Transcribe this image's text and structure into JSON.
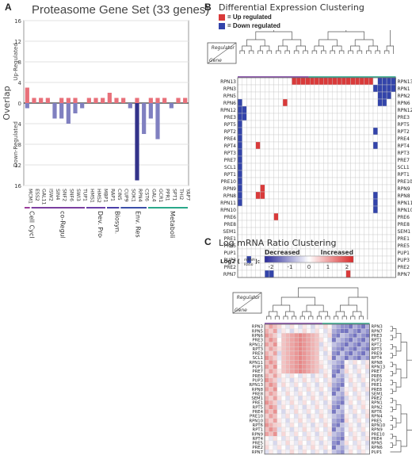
{
  "panel_a": {
    "letter": "A",
    "chart_data": {
      "type": "bar",
      "title": "Proteasome Gene Set (33 genes)",
      "ylabel": "Overlap",
      "y_upper_label": "Up-Regulated",
      "y_lower_label": "Down-Regulated",
      "ylim": [
        -16,
        16
      ],
      "yticks": [
        "16",
        "12",
        "8",
        "4",
        "0",
        "4",
        "8",
        "12",
        "16"
      ],
      "categories": [
        "MCM1",
        "ESS2",
        "GAL11",
        "ISW2",
        "SIN4",
        "SNF2",
        "SNF6",
        "SWI3",
        "TUP1",
        "HMS1",
        "HMS2",
        "MBP1",
        "RAP1",
        "CIN5",
        "CUP9",
        "SOK1",
        "RPN4",
        "CST6",
        "GAL4",
        "GCR1",
        "PPR1",
        "SPT1",
        "THI2",
        "YAP7"
      ],
      "series": [
        {
          "key": "up",
          "values": [
            3,
            1,
            1,
            1,
            0,
            1,
            1,
            1,
            0,
            1,
            1,
            1,
            2,
            1,
            1,
            0,
            1,
            0,
            1,
            1,
            1,
            0,
            1,
            1
          ]
        },
        {
          "key": "down",
          "values": [
            -1,
            0,
            0,
            0,
            -3,
            -3,
            -4,
            -2,
            -1,
            0,
            0,
            0,
            0,
            0,
            0,
            -1,
            -15,
            -6,
            -3,
            -7,
            0,
            -1,
            0,
            0
          ]
        }
      ],
      "colors": {
        "up": "#e8707a",
        "down": "#8080c0",
        "strong_down": "#33338a"
      },
      "groups": [
        {
          "label": "Cell Cycle",
          "from": 0,
          "to": 0,
          "color": "#9b3d9b"
        },
        {
          "label": "co-Regulator",
          "from": 1,
          "to": 8,
          "color": "#7b3fa0"
        },
        {
          "label": "Dev. Process",
          "from": 9,
          "to": 11,
          "color": "#6a3fa8"
        },
        {
          "label": "Biosyn.",
          "from": 12,
          "to": 13,
          "color": "#4a3fa8"
        },
        {
          "label": "Env. Response",
          "from": 14,
          "to": 17,
          "color": "#3a4fa8"
        },
        {
          "label": "Metabolism",
          "from": 18,
          "to": 23,
          "color": "#2aa88a"
        }
      ]
    }
  },
  "panel_b": {
    "letter": "B",
    "title": "Differential Expression Clustering",
    "legend_up": "= Up regulated",
    "legend_down": "= Down regulated",
    "corner_top": "Regulator",
    "corner_bottom": "Gene",
    "colors": {
      "up": "#d93a3a",
      "down": "#3344aa"
    },
    "chart_data": {
      "type": "heatmap",
      "rows": [
        "RPN13",
        "RPN3",
        "RPN5",
        "RPN6",
        "RPN12",
        "PRE3",
        "RPT5",
        "RPT2",
        "PRE4",
        "RPT4",
        "RPT3",
        "PRE7",
        "SCL1",
        "RPT1",
        "PRE10",
        "RPN9",
        "RPN8",
        "RPN11",
        "RPN10",
        "PRE6",
        "PRE8",
        "SEM1",
        "PRE1",
        "PRE5",
        "PUP1",
        "PUP3",
        "PRE2",
        "RPN7"
      ],
      "up_cells": [
        [
          0,
          12
        ],
        [
          0,
          13
        ],
        [
          0,
          14
        ],
        [
          0,
          15
        ],
        [
          0,
          16
        ],
        [
          0,
          17
        ],
        [
          0,
          18
        ],
        [
          0,
          19
        ],
        [
          0,
          20
        ],
        [
          0,
          21
        ],
        [
          0,
          22
        ],
        [
          0,
          23
        ],
        [
          0,
          24
        ],
        [
          0,
          25
        ],
        [
          0,
          26
        ],
        [
          0,
          27
        ],
        [
          0,
          28
        ],
        [
          0,
          29
        ],
        [
          3,
          10
        ],
        [
          9,
          4
        ],
        [
          15,
          5
        ],
        [
          16,
          4
        ],
        [
          16,
          5
        ],
        [
          19,
          8
        ],
        [
          27,
          24
        ]
      ],
      "down_cells": [
        [
          0,
          31
        ],
        [
          0,
          32
        ],
        [
          0,
          33
        ],
        [
          0,
          34
        ],
        [
          1,
          30
        ],
        [
          1,
          31
        ],
        [
          1,
          32
        ],
        [
          1,
          33
        ],
        [
          1,
          34
        ],
        [
          2,
          31
        ],
        [
          2,
          32
        ],
        [
          2,
          33
        ],
        [
          3,
          0
        ],
        [
          3,
          31
        ],
        [
          3,
          32
        ],
        [
          4,
          0
        ],
        [
          4,
          1
        ],
        [
          5,
          0
        ],
        [
          5,
          1
        ],
        [
          6,
          0
        ],
        [
          7,
          0
        ],
        [
          8,
          0
        ],
        [
          9,
          0
        ],
        [
          10,
          0
        ],
        [
          11,
          0
        ],
        [
          12,
          0
        ],
        [
          13,
          0
        ],
        [
          14,
          0
        ],
        [
          15,
          0
        ],
        [
          16,
          0
        ],
        [
          17,
          0
        ],
        [
          7,
          30
        ],
        [
          9,
          30
        ],
        [
          16,
          30
        ],
        [
          17,
          30
        ],
        [
          18,
          30
        ],
        [
          25,
          2
        ],
        [
          27,
          6
        ],
        [
          27,
          7
        ]
      ],
      "ncols": 35
    }
  },
  "panel_c": {
    "letter": "C",
    "title": "Log mRNA Ratio Clustering",
    "legend_decreased": "Decreased",
    "legend_increased": "Increased",
    "legend_label": "Log2 (",
    "legend_label_frac_top": "mRNA",
    "legend_label_frac_bottom": "Ratio",
    "legend_label_end": "):",
    "legend_ticks": [
      "-2",
      "-1",
      "0",
      "1",
      "2"
    ],
    "corner_top": "Regulator",
    "corner_bottom": "Gene",
    "chart_data": {
      "type": "heatmap",
      "rows": [
        "RPN3",
        "RPN5",
        "RPN6",
        "PRE3",
        "RPN12",
        "RPT3",
        "PRE9",
        "SCL1",
        "RPN11",
        "PUP1",
        "PRE7",
        "PRE6",
        "PUP3",
        "RPN13",
        "RPN8",
        "PRE8",
        "SEM1",
        "PRE1",
        "RPT5",
        "PRE4",
        "PRE10",
        "RPN10",
        "RPT6",
        "RPT1",
        "RPN9",
        "RPT4",
        "PRE5",
        "PRE2",
        "RPN7"
      ],
      "ncols": 25
    }
  },
  "labels_right_b": [
    "RPN13",
    "RPN1",
    "RPN2",
    "RPN6",
    "RPN12",
    "PRE3",
    "RPT5",
    "RPT2",
    "PRE4",
    "RPT4",
    "RPT3",
    "PRE7",
    "SCL1",
    "RPT1",
    "PRE10",
    "RPN9",
    "RPN8",
    "RPN11",
    "RPN10",
    "PRE6",
    "PRE8",
    "SEM1",
    "PRE1",
    "PRE5",
    "PUP1",
    "PUP3",
    "PRE2",
    "RPN7"
  ],
  "labels_right_c": [
    "RPN3",
    "RPN7",
    "PRE3",
    "RPT1",
    "RPT2",
    "RPT3",
    "PRE9",
    "RPT4",
    "RPN8",
    "RPN13",
    "PRE7",
    "PRE6",
    "PUP3",
    "PRE1",
    "PRE8",
    "SEM1",
    "PRE2",
    "RPN1",
    "RPN2",
    "RPT6",
    "RPN4",
    "PRE5",
    "RPN10",
    "RPN9",
    "PRE10",
    "PRE4",
    "RPN5",
    "RPN6",
    "PUP1"
  ]
}
